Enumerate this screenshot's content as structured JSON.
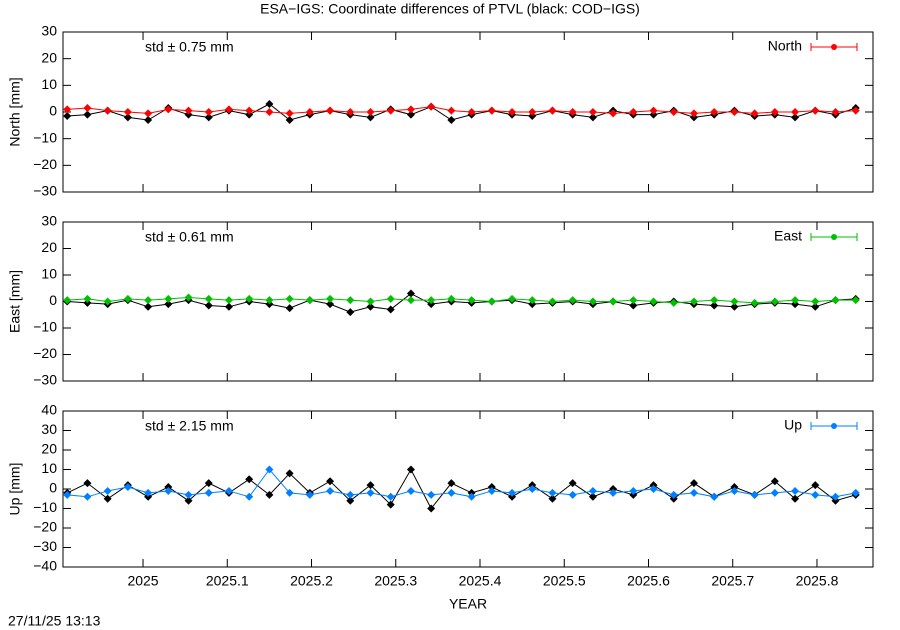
{
  "footer": "27/11/25 13:13",
  "chart_data": [
    {
      "type": "line",
      "title": "ESA−IGS: Coordinate differences of PTVL (black: COD−IGS)",
      "ylabel": "North [mm]",
      "annotation": "std ± 0.75 mm",
      "xlim": [
        2024.905,
        2025.8665
      ],
      "xticks": [
        2025,
        2025.1,
        2025.2,
        2025.3,
        2025.4,
        2025.5,
        2025.6,
        2025.7,
        2025.8
      ],
      "ylim": [
        -30,
        30
      ],
      "yticks": [
        {
          "value": -30,
          "label": "−30"
        },
        {
          "value": -20,
          "label": "−20"
        },
        {
          "value": -10,
          "label": "−10"
        },
        0,
        10,
        20,
        30
      ],
      "x": [
        2024.91,
        2024.934,
        2024.958,
        2024.982,
        2025.006,
        2025.03,
        2025.054,
        2025.078,
        2025.102,
        2025.126,
        2025.15,
        2025.174,
        2025.198,
        2025.222,
        2025.246,
        2025.27,
        2025.294,
        2025.318,
        2025.342,
        2025.366,
        2025.39,
        2025.414,
        2025.438,
        2025.462,
        2025.486,
        2025.51,
        2025.534,
        2025.558,
        2025.582,
        2025.606,
        2025.63,
        2025.654,
        2025.678,
        2025.702,
        2025.726,
        2025.75,
        2025.774,
        2025.798,
        2025.822,
        2025.846
      ],
      "series": [
        {
          "color": "#000000",
          "values": [
            -1.5,
            -1,
            0.5,
            -2,
            -3,
            1.5,
            -1,
            -2,
            0.5,
            -1,
            3,
            -3,
            -1,
            0.5,
            -1,
            -2,
            1,
            -1,
            2,
            -3,
            -1,
            0.5,
            -1,
            -1.5,
            0.5,
            -1,
            -2,
            0.5,
            -1,
            -1,
            0.5,
            -2,
            -1,
            0.5,
            -1.5,
            -1,
            -2,
            0.5,
            -1,
            1.5
          ]
        },
        {
          "name": "North",
          "color": "#ff0000",
          "values": [
            1,
            1.5,
            0.5,
            0,
            -0.5,
            1,
            0.5,
            0,
            1,
            0.5,
            0,
            -0.5,
            0,
            0.5,
            0,
            0,
            0.5,
            1,
            2,
            0.5,
            0,
            0.5,
            0,
            0,
            0.5,
            0,
            0,
            -0.5,
            0,
            0.5,
            0,
            -0.5,
            0,
            0,
            -0.5,
            0,
            0,
            0.5,
            0,
            0.5
          ]
        }
      ]
    },
    {
      "type": "line",
      "ylabel": "East [mm]",
      "annotation": "std ± 0.61 mm",
      "xlim": [
        2024.905,
        2025.8665
      ],
      "xticks": [
        2025,
        2025.1,
        2025.2,
        2025.3,
        2025.4,
        2025.5,
        2025.6,
        2025.7,
        2025.8
      ],
      "ylim": [
        -30,
        30
      ],
      "yticks": [
        {
          "value": -30,
          "label": "−30"
        },
        {
          "value": -20,
          "label": "−20"
        },
        {
          "value": -10,
          "label": "−10"
        },
        0,
        10,
        20,
        30
      ],
      "x": [
        2024.91,
        2024.934,
        2024.958,
        2024.982,
        2025.006,
        2025.03,
        2025.054,
        2025.078,
        2025.102,
        2025.126,
        2025.15,
        2025.174,
        2025.198,
        2025.222,
        2025.246,
        2025.27,
        2025.294,
        2025.318,
        2025.342,
        2025.366,
        2025.39,
        2025.414,
        2025.438,
        2025.462,
        2025.486,
        2025.51,
        2025.534,
        2025.558,
        2025.582,
        2025.606,
        2025.63,
        2025.654,
        2025.678,
        2025.702,
        2025.726,
        2025.75,
        2025.774,
        2025.798,
        2025.822,
        2025.846
      ],
      "series": [
        {
          "color": "#000000",
          "values": [
            0,
            -0.5,
            -1,
            0.5,
            -2,
            -1,
            0.5,
            -1.5,
            -2,
            0,
            -1,
            -2.5,
            0.5,
            -1,
            -4,
            -2,
            -3,
            3,
            -1,
            0,
            -0.5,
            0,
            0.5,
            -1,
            -0.5,
            0,
            -1,
            0,
            -1.5,
            -0.5,
            0,
            -1,
            -1.5,
            -2,
            -1,
            -0.5,
            -1,
            -2,
            0.5,
            1
          ]
        },
        {
          "name": "East",
          "color": "#00c000",
          "values": [
            0.5,
            1,
            0,
            1,
            0.5,
            1,
            1.5,
            1,
            0.5,
            1,
            0.5,
            1,
            0.5,
            1,
            0.5,
            0,
            1,
            0.5,
            0.5,
            1,
            0.5,
            0,
            1,
            0.5,
            0,
            0.5,
            0,
            0,
            0.5,
            0,
            -0.5,
            0,
            0.5,
            0,
            -0.5,
            0,
            0.5,
            0,
            0.5,
            0.5
          ]
        }
      ]
    },
    {
      "type": "line",
      "ylabel": "Up [mm]",
      "xlabel": "YEAR",
      "annotation": "std ± 2.15 mm",
      "xlim": [
        2024.905,
        2025.8665
      ],
      "xticks": [
        2025,
        2025.1,
        2025.2,
        2025.3,
        2025.4,
        2025.5,
        2025.6,
        2025.7,
        2025.8
      ],
      "ylim": [
        -40,
        40
      ],
      "yticks": [
        {
          "value": -40,
          "label": "−40"
        },
        {
          "value": -30,
          "label": "−30"
        },
        {
          "value": -20,
          "label": "−20"
        },
        {
          "value": -10,
          "label": "−10"
        },
        0,
        10,
        20,
        30,
        40
      ],
      "x": [
        2024.91,
        2024.934,
        2024.958,
        2024.982,
        2025.006,
        2025.03,
        2025.054,
        2025.078,
        2025.102,
        2025.126,
        2025.15,
        2025.174,
        2025.198,
        2025.222,
        2025.246,
        2025.27,
        2025.294,
        2025.318,
        2025.342,
        2025.366,
        2025.39,
        2025.414,
        2025.438,
        2025.462,
        2025.486,
        2025.51,
        2025.534,
        2025.558,
        2025.582,
        2025.606,
        2025.63,
        2025.654,
        2025.678,
        2025.702,
        2025.726,
        2025.75,
        2025.774,
        2025.798,
        2025.822,
        2025.846
      ],
      "series": [
        {
          "color": "#000000",
          "values": [
            -2,
            3,
            -5,
            2,
            -4,
            1,
            -6,
            3,
            -2,
            5,
            -3,
            8,
            -2,
            4,
            -6,
            2,
            -8,
            10,
            -10,
            3,
            -2,
            1,
            -4,
            2,
            -5,
            3,
            -4,
            0,
            -3,
            2,
            -5,
            3,
            -4,
            1,
            -3,
            4,
            -5,
            2,
            -6,
            -3
          ]
        },
        {
          "name": "Up",
          "color": "#0080ff",
          "values": [
            -3,
            -4,
            -1,
            1,
            -2,
            -1,
            -3,
            -2,
            -1,
            -4,
            10,
            -2,
            -3,
            -1,
            -3,
            -2,
            -4,
            -1,
            -3,
            -2,
            -4,
            -1,
            -2,
            0,
            -2,
            -3,
            -1,
            -2,
            -1,
            0,
            -3,
            -2,
            -4,
            -1,
            -3,
            -2,
            -1,
            -3,
            -4,
            -2
          ]
        }
      ]
    }
  ]
}
